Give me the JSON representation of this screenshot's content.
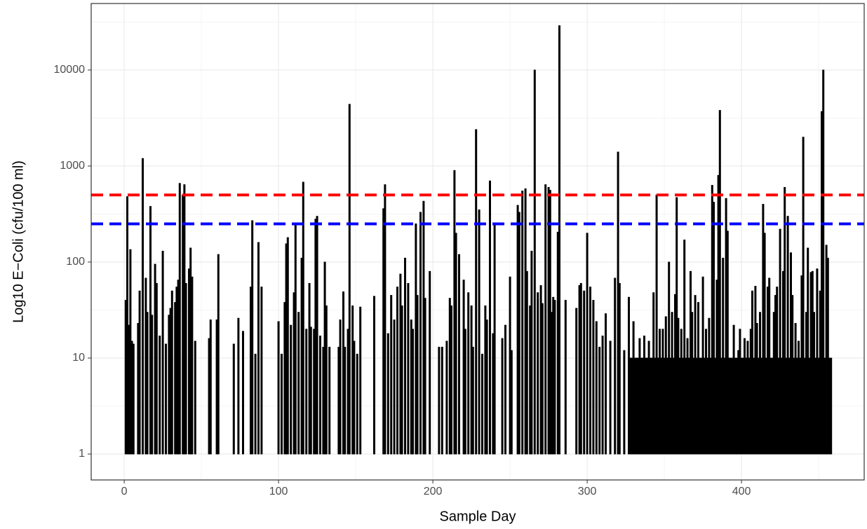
{
  "chart_data": {
    "type": "bar",
    "x_label": "Sample Day",
    "y_label": "Log10 E−Coli (cfu/100 ml)",
    "xlim": [
      -21.4,
      479.5
    ],
    "xticks": [
      0,
      100,
      200,
      300,
      400
    ],
    "ylim": [
      0.537,
      49300
    ],
    "yticks": [
      1,
      10,
      100,
      1000,
      10000
    ],
    "log_y": true,
    "grid": true,
    "color": "#000000",
    "hlines": [
      {
        "value": 500,
        "color": "#ff0000"
      },
      {
        "value": 250,
        "color": "#0000ff"
      }
    ],
    "x": [
      1,
      2,
      3,
      4,
      5,
      6,
      9,
      10,
      12,
      14,
      15,
      17,
      18,
      20,
      21,
      23,
      25,
      27,
      29,
      30,
      31,
      33,
      34,
      35,
      36,
      38,
      39,
      40,
      42,
      43,
      44,
      46,
      55,
      56,
      60,
      61,
      71,
      74,
      77,
      82,
      83,
      85,
      87,
      89,
      100,
      102,
      104,
      105,
      106,
      108,
      110,
      111,
      113,
      115,
      116,
      118,
      120,
      121,
      123,
      124,
      125,
      127,
      129,
      130,
      131,
      133,
      139,
      140,
      142,
      143,
      145,
      146,
      148,
      149,
      151,
      153,
      162,
      168,
      169,
      171,
      173,
      175,
      177,
      179,
      180,
      182,
      184,
      186,
      187,
      189,
      190,
      192,
      194,
      195,
      198,
      204,
      206,
      209,
      211,
      212,
      214,
      215,
      217,
      220,
      221,
      223,
      225,
      226,
      228,
      230,
      232,
      234,
      235,
      237,
      239,
      240,
      245,
      247,
      250,
      251,
      255,
      256,
      258,
      260,
      261,
      263,
      264,
      266,
      268,
      270,
      271,
      273,
      275,
      276,
      277,
      278,
      279,
      281,
      282,
      286,
      293,
      295,
      296,
      298,
      300,
      302,
      304,
      306,
      308,
      310,
      312,
      315,
      318,
      320,
      321,
      324,
      327,
      330,
      334,
      337,
      340,
      343,
      345,
      347,
      349,
      351,
      353,
      355,
      357,
      358,
      359,
      361,
      363,
      365,
      367,
      368,
      370,
      372,
      375,
      377,
      379,
      381,
      382,
      384,
      385,
      386,
      388,
      390,
      391,
      395,
      398,
      399,
      402,
      404,
      406,
      407,
      409,
      410,
      412,
      414,
      415,
      417,
      418,
      421,
      422,
      423,
      425,
      427,
      428,
      430,
      432,
      433,
      435,
      437,
      439,
      440,
      442,
      443,
      445,
      446,
      447,
      449,
      451,
      452,
      453,
      455,
      456,
      328,
      329,
      331,
      332,
      333,
      335,
      336,
      338,
      339,
      341,
      342,
      344,
      346,
      348,
      350,
      352,
      354,
      356,
      360,
      362,
      364,
      366,
      369,
      371,
      373,
      374,
      376,
      378,
      380,
      383,
      387,
      389,
      392,
      393,
      394,
      396,
      397,
      400,
      401,
      403,
      405,
      408,
      411,
      413,
      416,
      419,
      420,
      424,
      426,
      429,
      431,
      434,
      436,
      438,
      441,
      444,
      448,
      450,
      454,
      457,
      458
    ],
    "values": [
      40,
      480,
      22,
      135,
      15,
      14,
      23,
      50,
      1200,
      68,
      30,
      380,
      28,
      95,
      60,
      17,
      130,
      14,
      28,
      33,
      50,
      38,
      55,
      65,
      660,
      500,
      640,
      60,
      85,
      140,
      70,
      15,
      16,
      25,
      25,
      120,
      14,
      26,
      19,
      55,
      270,
      11,
      160,
      55,
      24,
      11,
      38,
      155,
      180,
      22,
      48,
      250,
      30,
      110,
      680,
      20,
      60,
      21,
      20,
      280,
      300,
      17,
      13,
      100,
      35,
      13,
      13,
      25,
      49,
      13,
      20,
      4400,
      35,
      15,
      11,
      34,
      44,
      360,
      640,
      18,
      45,
      25,
      55,
      75,
      35,
      110,
      60,
      25,
      20,
      250,
      45,
      330,
      430,
      42,
      80,
      13,
      13,
      15,
      42,
      35,
      900,
      200,
      120,
      65,
      20,
      48,
      35,
      13,
      2400,
      350,
      11,
      35,
      25,
      700,
      18,
      250,
      16,
      22,
      70,
      12,
      390,
      330,
      550,
      580,
      80,
      35,
      130,
      10000,
      48,
      57,
      37,
      640,
      600,
      560,
      30,
      43,
      40,
      205,
      29000,
      40,
      33,
      57,
      60,
      50,
      200,
      55,
      40,
      24,
      13,
      17,
      29,
      15,
      68,
      1400,
      60,
      12,
      43,
      24,
      16,
      17,
      15,
      48,
      500,
      20,
      20,
      27,
      100,
      30,
      46,
      470,
      26,
      20,
      170,
      16,
      80,
      30,
      45,
      38,
      70,
      20,
      26,
      630,
      420,
      65,
      800,
      3800,
      110,
      460,
      210,
      22,
      12,
      20,
      16,
      15,
      20,
      50,
      56,
      23,
      30,
      400,
      200,
      55,
      68,
      30,
      45,
      55,
      220,
      80,
      600,
      300,
      125,
      45,
      23,
      15,
      72,
      2000,
      30,
      140,
      78,
      80,
      30,
      85,
      50,
      3700,
      10000,
      150,
      110,
      10,
      10,
      10,
      10,
      10,
      10,
      10,
      10,
      10,
      10,
      10,
      10,
      10,
      10,
      10,
      10,
      10,
      10,
      10,
      10,
      10,
      10,
      10,
      10,
      10,
      10,
      10,
      10,
      10,
      10,
      10,
      10,
      10,
      10,
      10,
      10,
      10,
      10,
      10,
      10,
      10,
      10,
      10,
      10,
      10,
      10,
      10,
      10,
      10,
      10,
      10,
      10,
      10,
      10,
      10,
      10,
      10,
      10,
      10,
      10,
      10
    ]
  }
}
